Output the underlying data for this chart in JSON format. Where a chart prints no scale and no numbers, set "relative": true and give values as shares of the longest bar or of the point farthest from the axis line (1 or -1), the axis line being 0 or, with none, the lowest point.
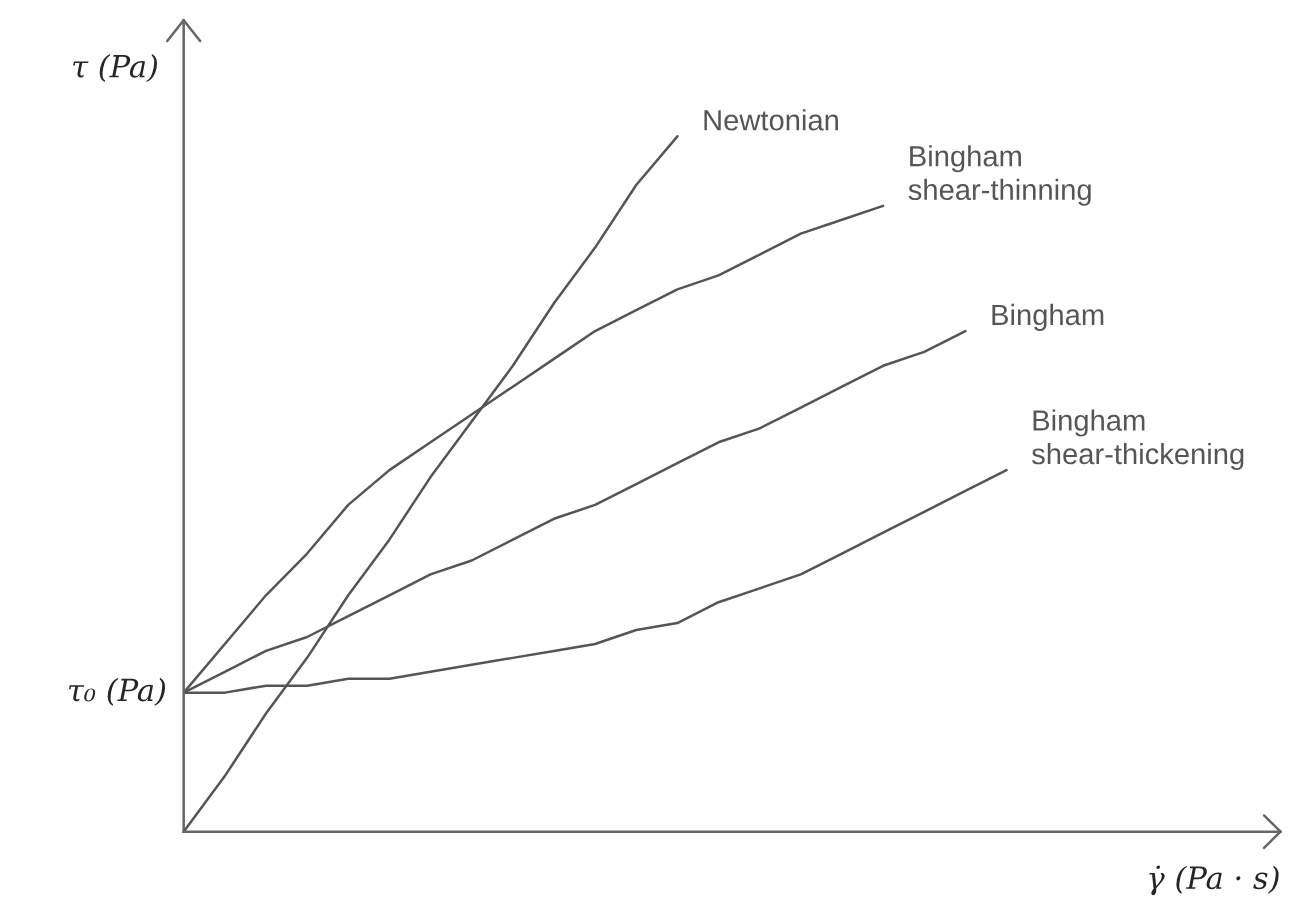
{
  "chart_data": {
    "type": "line",
    "relative": true,
    "xlabel": "γ̇ (Pa · s)",
    "ylabel": "τ (Pa)",
    "categories": [
      null,
      null,
      null,
      null,
      null,
      null,
      null,
      null,
      null,
      null,
      null,
      null,
      null,
      null,
      null,
      null,
      null,
      null,
      null,
      null,
      null
    ],
    "annotations": [
      "τ₀ (Pa)"
    ],
    "series": [
      {
        "name": "Newtonian",
        "color": "#555555",
        "values": [
          0,
          0.08,
          0.17,
          0.25,
          0.34,
          0.42,
          0.51,
          0.59,
          0.67,
          0.76,
          0.84,
          0.93,
          1,
          null,
          null,
          null,
          null,
          null,
          null,
          null,
          null
        ]
      },
      {
        "name": "Bingham\nshear-thinning",
        "color": "#555555",
        "values": [
          0.2,
          0.27,
          0.34,
          0.4,
          0.47,
          0.52,
          0.56,
          0.6,
          0.64,
          0.68,
          0.72,
          0.75,
          0.78,
          0.8,
          0.83,
          0.86,
          0.88,
          0.9,
          null,
          null,
          null
        ]
      },
      {
        "name": "Bingham",
        "color": "#555555",
        "values": [
          0.2,
          0.23,
          0.26,
          0.28,
          0.31,
          0.34,
          0.37,
          0.39,
          0.42,
          0.45,
          0.47,
          0.5,
          0.53,
          0.56,
          0.58,
          0.61,
          0.64,
          0.67,
          0.69,
          0.72,
          null
        ]
      },
      {
        "name": "Bingham\nshear-thickening",
        "color": "#555555",
        "values": [
          0.2,
          0.2,
          0.21,
          0.21,
          0.22,
          0.22,
          0.23,
          0.24,
          0.25,
          0.26,
          0.27,
          0.29,
          0.3,
          0.33,
          0.35,
          0.37,
          0.4,
          0.43,
          0.46,
          0.49,
          0.52
        ]
      }
    ]
  }
}
